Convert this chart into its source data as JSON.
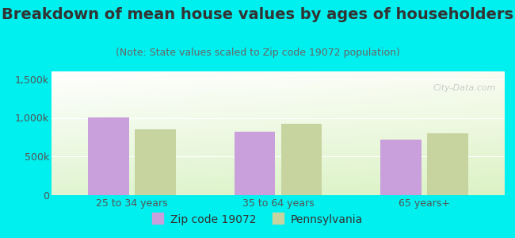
{
  "title": "Breakdown of mean house values by ages of householders",
  "subtitle": "(Note: State values scaled to Zip code 19072 population)",
  "categories": [
    "25 to 34 years",
    "35 to 64 years",
    "65 years+"
  ],
  "zip_values": [
    1010000,
    820000,
    720000
  ],
  "state_values": [
    855000,
    920000,
    800000
  ],
  "zip_color": "#c9a0dc",
  "state_color": "#c8d4a0",
  "background_color": "#00efef",
  "ylim": [
    0,
    1600000
  ],
  "yticks": [
    0,
    500000,
    1000000,
    1500000
  ],
  "ytick_labels": [
    "0",
    "500k",
    "1,000k",
    "1,500k"
  ],
  "legend_zip_label": "Zip code 19072",
  "legend_state_label": "Pennsylvania",
  "watermark": "City-Data.com",
  "title_fontsize": 14,
  "subtitle_fontsize": 9,
  "tick_fontsize": 9,
  "legend_fontsize": 10
}
